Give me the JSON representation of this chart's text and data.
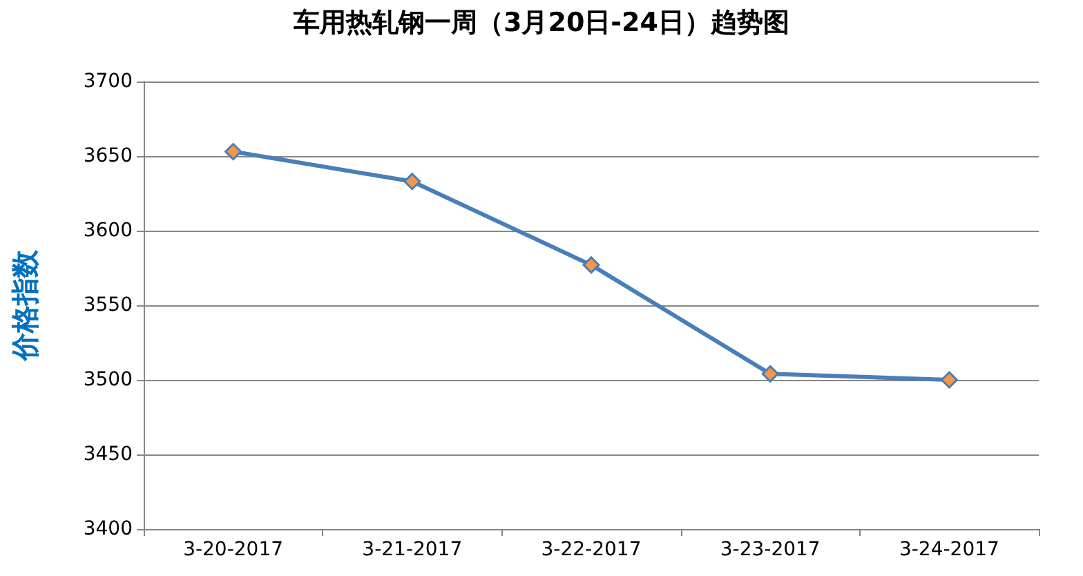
{
  "chart_data": {
    "type": "line",
    "title": "车用热轧钢一周（3月20日-24日）趋势图",
    "ylabel": "价格指数",
    "categories": [
      "3-20-2017",
      "3-21-2017",
      "3-22-2017",
      "3-23-2017",
      "3-24-2017"
    ],
    "series": [
      {
        "color": "#4a7ebb",
        "values": [
          3653,
          3633,
          3577,
          3504,
          3500
        ]
      }
    ],
    "ylim": [
      3400,
      3700
    ],
    "yticks": [
      3400,
      3450,
      3500,
      3550,
      3600,
      3650,
      3700
    ],
    "grid": "y",
    "marker": "diamond",
    "line_style": "solid"
  }
}
